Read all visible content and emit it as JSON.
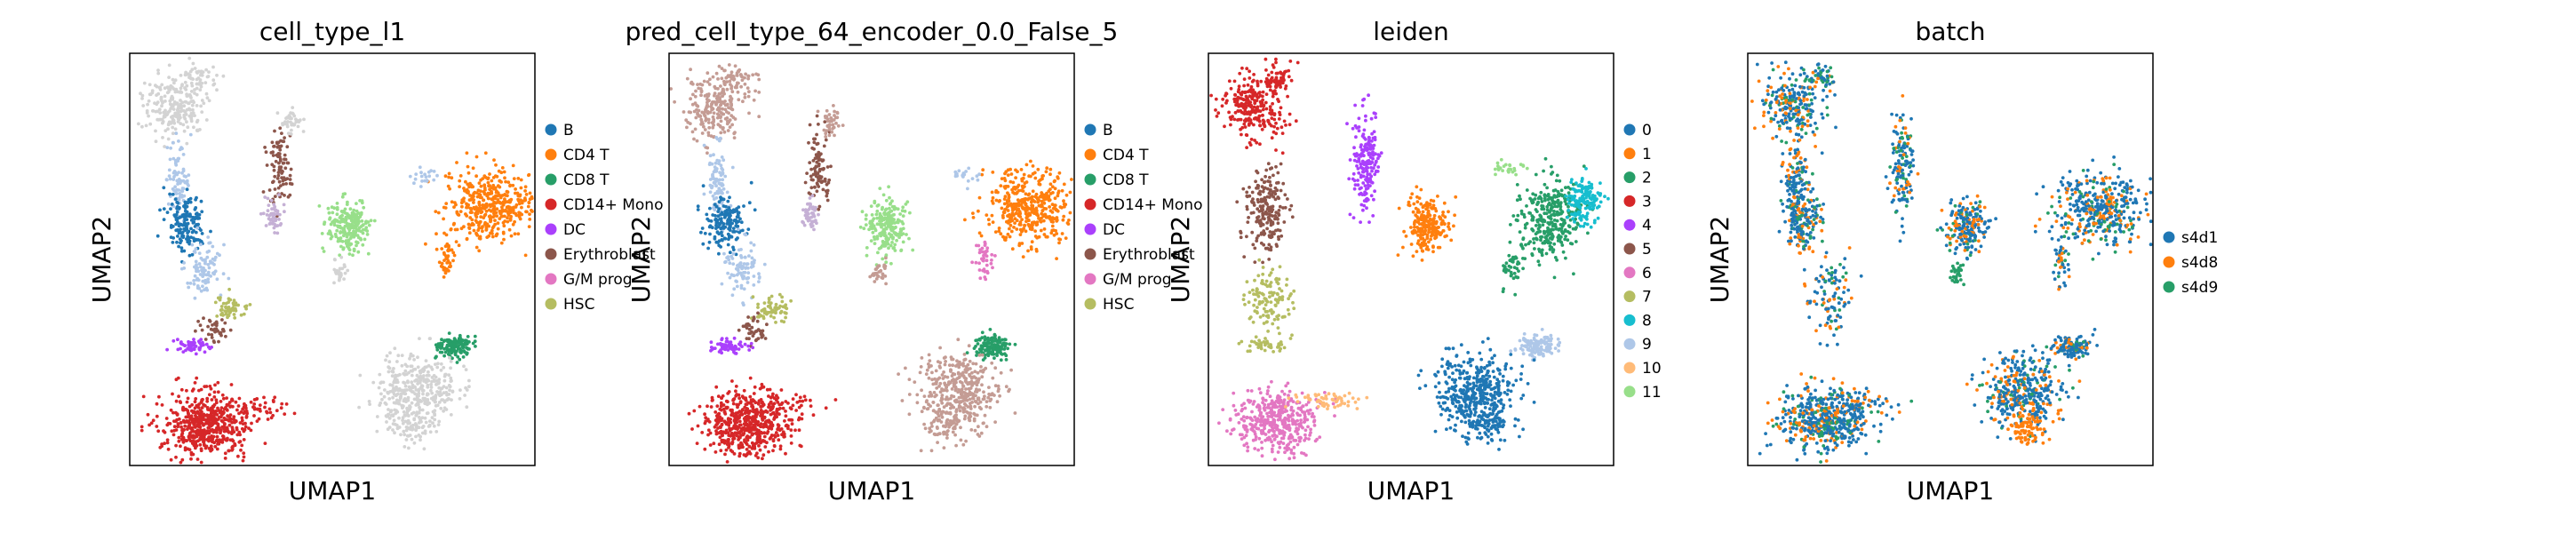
{
  "chart_data": [
    {
      "type": "scatter",
      "title": "cell_type_l1",
      "xlabel": "UMAP1",
      "ylabel": "UMAP2",
      "grid": false,
      "legend_position": "right",
      "legend": [
        {
          "label": "B",
          "color": "#1f77b4"
        },
        {
          "label": "CD4 T",
          "color": "#ff7f0e"
        },
        {
          "label": "CD8 T",
          "color": "#279e68"
        },
        {
          "label": "CD14+ Mono",
          "color": "#d62728"
        },
        {
          "label": "DC",
          "color": "#aa40fc"
        },
        {
          "label": "Erythroblast",
          "color": "#8c564b"
        },
        {
          "label": "G/M prog",
          "color": "#e377c2"
        },
        {
          "label": "HSC",
          "color": "#b5bd61"
        }
      ],
      "unlabeled_color": "#d3d3d3",
      "clusters": [
        {
          "name": "top-left arm",
          "color": "#d3d3d3",
          "cx": 0.11,
          "cy": 0.13,
          "rx": 0.07,
          "ry": 0.07,
          "n": 220
        },
        {
          "name": "arm tip",
          "color": "#d3d3d3",
          "cx": 0.17,
          "cy": 0.06,
          "rx": 0.04,
          "ry": 0.03,
          "n": 50
        },
        {
          "name": "stalk",
          "color": "#aec7e8",
          "cx": 0.12,
          "cy": 0.31,
          "rx": 0.025,
          "ry": 0.08,
          "n": 90
        },
        {
          "name": "B",
          "color": "#1f77b4",
          "cx": 0.14,
          "cy": 0.41,
          "rx": 0.045,
          "ry": 0.06,
          "n": 160
        },
        {
          "name": "light-blue trail",
          "color": "#aec7e8",
          "cx": 0.18,
          "cy": 0.52,
          "rx": 0.04,
          "ry": 0.06,
          "n": 90
        },
        {
          "name": "HSC",
          "color": "#b5bd61",
          "cx": 0.25,
          "cy": 0.62,
          "rx": 0.04,
          "ry": 0.03,
          "n": 60
        },
        {
          "name": "Erythroblast",
          "color": "#8c564b",
          "cx": 0.21,
          "cy": 0.67,
          "rx": 0.03,
          "ry": 0.03,
          "n": 40
        },
        {
          "name": "DC",
          "color": "#aa40fc",
          "cx": 0.15,
          "cy": 0.71,
          "rx": 0.04,
          "ry": 0.015,
          "n": 60
        },
        {
          "name": "Mono tail",
          "color": "#d62728",
          "cx": 0.26,
          "cy": 0.86,
          "rx": 0.12,
          "ry": 0.025,
          "n": 60
        },
        {
          "name": "CD14+ Mono",
          "color": "#d62728",
          "cx": 0.19,
          "cy": 0.9,
          "rx": 0.1,
          "ry": 0.07,
          "n": 520
        },
        {
          "name": "mid stem",
          "color": "#8c564b",
          "cx": 0.37,
          "cy": 0.28,
          "rx": 0.025,
          "ry": 0.08,
          "n": 90
        },
        {
          "name": "mid top",
          "color": "#d3d3d3",
          "cx": 0.4,
          "cy": 0.17,
          "rx": 0.025,
          "ry": 0.03,
          "n": 40
        },
        {
          "name": "mid lavender",
          "color": "#c5b0d5",
          "cx": 0.35,
          "cy": 0.39,
          "rx": 0.02,
          "ry": 0.04,
          "n": 50
        },
        {
          "name": "CD8 T",
          "color": "#98df8a",
          "cx": 0.54,
          "cy": 0.42,
          "rx": 0.045,
          "ry": 0.06,
          "n": 220
        },
        {
          "name": "CD8 small",
          "color": "#d3d3d3",
          "cx": 0.52,
          "cy": 0.53,
          "rx": 0.015,
          "ry": 0.025,
          "n": 30
        },
        {
          "name": "CD4 T",
          "color": "#ff7f0e",
          "cx": 0.89,
          "cy": 0.37,
          "rx": 0.1,
          "ry": 0.08,
          "n": 420
        },
        {
          "name": "CD4 stem",
          "color": "#ff7f0e",
          "cx": 0.78,
          "cy": 0.5,
          "rx": 0.02,
          "ry": 0.05,
          "n": 40
        },
        {
          "name": "CD4 thread",
          "color": "#aec7e8",
          "cx": 0.73,
          "cy": 0.3,
          "rx": 0.03,
          "ry": 0.02,
          "n": 20
        },
        {
          "name": "B2",
          "color": "#279e68",
          "cx": 0.8,
          "cy": 0.71,
          "rx": 0.04,
          "ry": 0.025,
          "n": 140
        },
        {
          "name": "lower right",
          "color": "#d3d3d3",
          "cx": 0.71,
          "cy": 0.82,
          "rx": 0.09,
          "ry": 0.08,
          "n": 360
        },
        {
          "name": "lower right tail",
          "color": "#d3d3d3",
          "cx": 0.7,
          "cy": 0.9,
          "rx": 0.06,
          "ry": 0.04,
          "n": 80
        }
      ]
    },
    {
      "type": "scatter",
      "title": "pred_cell_type_64_encoder_0.0_False_5",
      "xlabel": "UMAP1",
      "ylabel": "UMAP2",
      "grid": false,
      "legend_position": "right",
      "legend": [
        {
          "label": "B",
          "color": "#1f77b4"
        },
        {
          "label": "CD4 T",
          "color": "#ff7f0e"
        },
        {
          "label": "CD8 T",
          "color": "#279e68"
        },
        {
          "label": "CD14+ Mono",
          "color": "#d62728"
        },
        {
          "label": "DC",
          "color": "#aa40fc"
        },
        {
          "label": "Erythroblast",
          "color": "#8c564b"
        },
        {
          "label": "G/M prog",
          "color": "#e377c2"
        },
        {
          "label": "HSC",
          "color": "#b5bd61"
        }
      ],
      "clusters": [
        {
          "name": "top-left arm",
          "color": "#c49c94",
          "cx": 0.11,
          "cy": 0.13,
          "rx": 0.07,
          "ry": 0.07,
          "n": 220
        },
        {
          "name": "arm tip",
          "color": "#c49c94",
          "cx": 0.17,
          "cy": 0.06,
          "rx": 0.04,
          "ry": 0.03,
          "n": 50
        },
        {
          "name": "stalk",
          "color": "#aec7e8",
          "cx": 0.12,
          "cy": 0.31,
          "rx": 0.025,
          "ry": 0.08,
          "n": 90
        },
        {
          "name": "B",
          "color": "#1f77b4",
          "cx": 0.14,
          "cy": 0.41,
          "rx": 0.045,
          "ry": 0.06,
          "n": 160
        },
        {
          "name": "light-blue trail",
          "color": "#aec7e8",
          "cx": 0.18,
          "cy": 0.52,
          "rx": 0.04,
          "ry": 0.06,
          "n": 90
        },
        {
          "name": "HSC",
          "color": "#b5bd61",
          "cx": 0.25,
          "cy": 0.62,
          "rx": 0.04,
          "ry": 0.03,
          "n": 60
        },
        {
          "name": "Erythroblast",
          "color": "#8c564b",
          "cx": 0.21,
          "cy": 0.67,
          "rx": 0.03,
          "ry": 0.03,
          "n": 40
        },
        {
          "name": "DC",
          "color": "#aa40fc",
          "cx": 0.15,
          "cy": 0.71,
          "rx": 0.04,
          "ry": 0.015,
          "n": 60
        },
        {
          "name": "Mono tail",
          "color": "#d62728",
          "cx": 0.26,
          "cy": 0.86,
          "rx": 0.12,
          "ry": 0.025,
          "n": 60
        },
        {
          "name": "CD14+ Mono",
          "color": "#d62728",
          "cx": 0.19,
          "cy": 0.9,
          "rx": 0.1,
          "ry": 0.07,
          "n": 520
        },
        {
          "name": "mid stem",
          "color": "#8c564b",
          "cx": 0.37,
          "cy": 0.28,
          "rx": 0.025,
          "ry": 0.08,
          "n": 90
        },
        {
          "name": "mid top",
          "color": "#c49c94",
          "cx": 0.4,
          "cy": 0.17,
          "rx": 0.025,
          "ry": 0.03,
          "n": 40
        },
        {
          "name": "mid lavender",
          "color": "#c5b0d5",
          "cx": 0.35,
          "cy": 0.39,
          "rx": 0.02,
          "ry": 0.04,
          "n": 50
        },
        {
          "name": "CD8 T",
          "color": "#98df8a",
          "cx": 0.54,
          "cy": 0.42,
          "rx": 0.045,
          "ry": 0.06,
          "n": 220
        },
        {
          "name": "CD8 small",
          "color": "#c49c94",
          "cx": 0.52,
          "cy": 0.53,
          "rx": 0.015,
          "ry": 0.025,
          "n": 30
        },
        {
          "name": "CD4 T",
          "color": "#ff7f0e",
          "cx": 0.89,
          "cy": 0.37,
          "rx": 0.1,
          "ry": 0.08,
          "n": 420
        },
        {
          "name": "CD4 stem",
          "color": "#e377c2",
          "cx": 0.78,
          "cy": 0.5,
          "rx": 0.02,
          "ry": 0.05,
          "n": 40
        },
        {
          "name": "CD4 thread",
          "color": "#aec7e8",
          "cx": 0.73,
          "cy": 0.3,
          "rx": 0.03,
          "ry": 0.02,
          "n": 20
        },
        {
          "name": "B2",
          "color": "#279e68",
          "cx": 0.8,
          "cy": 0.71,
          "rx": 0.04,
          "ry": 0.025,
          "n": 140
        },
        {
          "name": "lower right",
          "color": "#c49c94",
          "cx": 0.71,
          "cy": 0.82,
          "rx": 0.09,
          "ry": 0.08,
          "n": 360
        },
        {
          "name": "lower right tail",
          "color": "#c49c94",
          "cx": 0.7,
          "cy": 0.9,
          "rx": 0.06,
          "ry": 0.04,
          "n": 80
        }
      ]
    },
    {
      "type": "scatter",
      "title": "leiden",
      "xlabel": "UMAP1",
      "ylabel": "UMAP2",
      "grid": false,
      "legend_position": "right",
      "legend": [
        {
          "label": "0",
          "color": "#1f77b4"
        },
        {
          "label": "1",
          "color": "#ff7f0e"
        },
        {
          "label": "2",
          "color": "#279e68"
        },
        {
          "label": "3",
          "color": "#d62728"
        },
        {
          "label": "4",
          "color": "#aa40fc"
        },
        {
          "label": "5",
          "color": "#8c564b"
        },
        {
          "label": "6",
          "color": "#e377c2"
        },
        {
          "label": "7",
          "color": "#b5bd61"
        },
        {
          "label": "8",
          "color": "#17becf"
        },
        {
          "label": "9",
          "color": "#aec7e8"
        },
        {
          "label": "10",
          "color": "#ffbb78"
        },
        {
          "label": "11",
          "color": "#98df8a"
        }
      ],
      "clusters": [
        {
          "name": "3",
          "color": "#d62728",
          "cx": 0.11,
          "cy": 0.13,
          "rx": 0.07,
          "ry": 0.07,
          "n": 260
        },
        {
          "name": "3 tip",
          "color": "#d62728",
          "cx": 0.17,
          "cy": 0.06,
          "rx": 0.04,
          "ry": 0.03,
          "n": 50
        },
        {
          "name": "5",
          "color": "#8c564b",
          "cx": 0.14,
          "cy": 0.38,
          "rx": 0.045,
          "ry": 0.09,
          "n": 200
        },
        {
          "name": "7",
          "color": "#b5bd61",
          "cx": 0.15,
          "cy": 0.6,
          "rx": 0.05,
          "ry": 0.07,
          "n": 120
        },
        {
          "name": "7 foot",
          "color": "#b5bd61",
          "cx": 0.14,
          "cy": 0.71,
          "rx": 0.05,
          "ry": 0.015,
          "n": 40
        },
        {
          "name": "6",
          "color": "#e377c2",
          "cx": 0.17,
          "cy": 0.89,
          "rx": 0.09,
          "ry": 0.07,
          "n": 420
        },
        {
          "name": "10",
          "color": "#ffbb78",
          "cx": 0.29,
          "cy": 0.84,
          "rx": 0.07,
          "ry": 0.02,
          "n": 60
        },
        {
          "name": "4",
          "color": "#aa40fc",
          "cx": 0.39,
          "cy": 0.27,
          "rx": 0.03,
          "ry": 0.12,
          "n": 180
        },
        {
          "name": "1",
          "color": "#ff7f0e",
          "cx": 0.54,
          "cy": 0.42,
          "rx": 0.045,
          "ry": 0.06,
          "n": 220
        },
        {
          "name": "2",
          "color": "#279e68",
          "cx": 0.84,
          "cy": 0.4,
          "rx": 0.07,
          "ry": 0.09,
          "n": 320
        },
        {
          "name": "2 stem",
          "color": "#279e68",
          "cx": 0.75,
          "cy": 0.52,
          "rx": 0.02,
          "ry": 0.05,
          "n": 40
        },
        {
          "name": "8",
          "color": "#17becf",
          "cx": 0.93,
          "cy": 0.36,
          "rx": 0.04,
          "ry": 0.05,
          "n": 160
        },
        {
          "name": "11",
          "color": "#98df8a",
          "cx": 0.74,
          "cy": 0.28,
          "rx": 0.04,
          "ry": 0.02,
          "n": 25
        },
        {
          "name": "9",
          "color": "#aec7e8",
          "cx": 0.81,
          "cy": 0.71,
          "rx": 0.04,
          "ry": 0.025,
          "n": 120
        },
        {
          "name": "0",
          "color": "#1f77b4",
          "cx": 0.66,
          "cy": 0.82,
          "rx": 0.09,
          "ry": 0.08,
          "n": 420
        },
        {
          "name": "0 tail",
          "color": "#1f77b4",
          "cx": 0.69,
          "cy": 0.9,
          "rx": 0.06,
          "ry": 0.04,
          "n": 80
        }
      ]
    },
    {
      "type": "scatter",
      "title": "batch",
      "xlabel": "UMAP1",
      "ylabel": "UMAP2",
      "grid": false,
      "legend_position": "right",
      "legend": [
        {
          "label": "s4d1",
          "color": "#1f77b4"
        },
        {
          "label": "s4d8",
          "color": "#ff7f0e"
        },
        {
          "label": "s4d9",
          "color": "#279e68"
        }
      ],
      "clusters": [
        {
          "name": "top-left arm",
          "color": "mix",
          "cx": 0.11,
          "cy": 0.13,
          "rx": 0.07,
          "ry": 0.07,
          "n": 240
        },
        {
          "name": "arm tip",
          "color": "mix",
          "cx": 0.17,
          "cy": 0.06,
          "rx": 0.04,
          "ry": 0.03,
          "n": 50
        },
        {
          "name": "stalk",
          "color": "mix",
          "cx": 0.12,
          "cy": 0.33,
          "rx": 0.03,
          "ry": 0.1,
          "n": 150
        },
        {
          "name": "B",
          "color": "mix",
          "cx": 0.14,
          "cy": 0.41,
          "rx": 0.045,
          "ry": 0.06,
          "n": 140
        },
        {
          "name": "trail",
          "color": "mix",
          "cx": 0.2,
          "cy": 0.6,
          "rx": 0.05,
          "ry": 0.08,
          "n": 110
        },
        {
          "name": "mono",
          "color": "mix",
          "cx": 0.19,
          "cy": 0.89,
          "rx": 0.1,
          "ry": 0.07,
          "n": 480
        },
        {
          "name": "mono tail",
          "color": "mix",
          "cx": 0.27,
          "cy": 0.85,
          "rx": 0.1,
          "ry": 0.025,
          "n": 60
        },
        {
          "name": "mid stem",
          "color": "mix",
          "cx": 0.38,
          "cy": 0.27,
          "rx": 0.025,
          "ry": 0.12,
          "n": 140
        },
        {
          "name": "cd8",
          "color": "mix",
          "cx": 0.54,
          "cy": 0.42,
          "rx": 0.045,
          "ry": 0.06,
          "n": 200
        },
        {
          "name": "cd8 small",
          "color": "#279e68",
          "cx": 0.52,
          "cy": 0.53,
          "rx": 0.015,
          "ry": 0.025,
          "n": 30
        },
        {
          "name": "cd4",
          "color": "mix",
          "cx": 0.87,
          "cy": 0.38,
          "rx": 0.1,
          "ry": 0.08,
          "n": 420
        },
        {
          "name": "cd4 stem",
          "color": "mix",
          "cx": 0.77,
          "cy": 0.51,
          "rx": 0.02,
          "ry": 0.05,
          "n": 40
        },
        {
          "name": "b2",
          "color": "mix",
          "cx": 0.8,
          "cy": 0.71,
          "rx": 0.04,
          "ry": 0.025,
          "n": 120
        },
        {
          "name": "lower right",
          "color": "mix",
          "cx": 0.68,
          "cy": 0.82,
          "rx": 0.09,
          "ry": 0.08,
          "n": 380
        },
        {
          "name": "lower right orange",
          "color": "#ff7f0e",
          "cx": 0.69,
          "cy": 0.91,
          "rx": 0.04,
          "ry": 0.035,
          "n": 80
        }
      ]
    }
  ]
}
